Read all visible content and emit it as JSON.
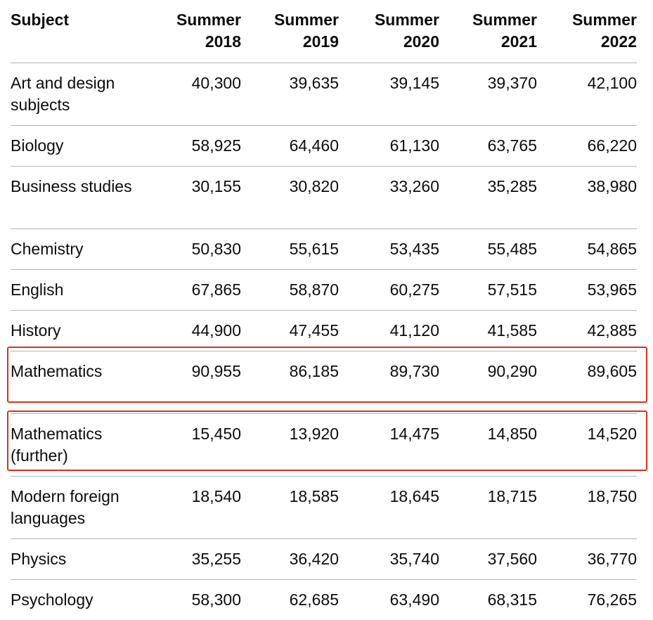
{
  "table": {
    "headers": {
      "subject": "Subject",
      "years": [
        {
          "line1": "Summer",
          "line2": "2018"
        },
        {
          "line1": "Summer",
          "line2": "2019"
        },
        {
          "line1": "Summer",
          "line2": "2020"
        },
        {
          "line1": "Summer",
          "line2": "2021"
        },
        {
          "line1": "Summer",
          "line2": "2022"
        }
      ]
    },
    "rows": [
      {
        "subject": "Art and design subjects",
        "values": [
          "40,300",
          "39,635",
          "39,145",
          "39,370",
          "42,100"
        ]
      },
      {
        "subject": "Biology",
        "values": [
          "58,925",
          "64,460",
          "61,130",
          "63,765",
          "66,220"
        ]
      },
      {
        "subject": "Business studies",
        "values": [
          "30,155",
          "30,820",
          "33,260",
          "35,285",
          "38,980"
        ]
      },
      {
        "subject": "Chemistry",
        "values": [
          "50,830",
          "55,615",
          "53,435",
          "55,485",
          "54,865"
        ]
      },
      {
        "subject": "English",
        "values": [
          "67,865",
          "58,870",
          "60,275",
          "57,515",
          "53,965"
        ]
      },
      {
        "subject": "History",
        "values": [
          "44,900",
          "47,455",
          "41,120",
          "41,585",
          "42,885"
        ]
      },
      {
        "subject": "Mathematics",
        "values": [
          "90,955",
          "86,185",
          "89,730",
          "90,290",
          "89,605"
        ]
      },
      {
        "subject": "Mathematics (further)",
        "values": [
          "15,450",
          "13,920",
          "14,475",
          "14,850",
          "14,520"
        ]
      },
      {
        "subject": "Modern foreign languages",
        "values": [
          "18,540",
          "18,585",
          "18,645",
          "18,715",
          "18,750"
        ]
      },
      {
        "subject": "Physics",
        "values": [
          "35,255",
          "36,420",
          "35,740",
          "37,560",
          "36,770"
        ]
      },
      {
        "subject": "Psychology",
        "values": [
          "58,300",
          "62,685",
          "63,490",
          "68,315",
          "76,265"
        ]
      }
    ]
  },
  "highlight_color": "#d4351c"
}
